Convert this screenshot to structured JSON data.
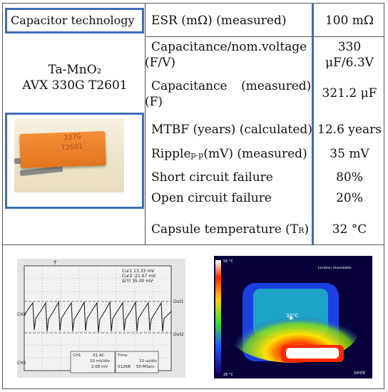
{
  "table": {
    "header_left": "Capacitor technology",
    "capacitor_type": "Ta-MnO₂",
    "capacitor_model": "AVX 330G T2601",
    "photo_marking_1": "337G",
    "photo_marking_2": "T2601",
    "rows": [
      {
        "label": "ESR (mΩ) (measured)",
        "value": "100 mΩ"
      },
      {
        "label_line1": "Capacitance/nom.voltage",
        "label_line2": "(F/V)",
        "value_line1": "330",
        "value_line2": "μF/6.3V"
      },
      {
        "label_line1_a": "Capacitance",
        "label_line1_b": "(measured)",
        "label_line2": "(F)",
        "value": "321.2 μF"
      },
      {
        "label": "MTBF (years) (calculated)",
        "value": "12.6 years"
      },
      {
        "label_a": "Ripple",
        "label_sub": "p-p",
        "label_b": "(mV) (measured)",
        "value": "35 mV"
      },
      {
        "label": "Short circuit failure",
        "value": "80%"
      },
      {
        "label": "Open circuit failure",
        "value": "20%"
      },
      {
        "label_a": "Capsule temperature (T",
        "label_sub": "R",
        "label_b": ")",
        "value": "32 °C"
      }
    ]
  },
  "oscilloscope": {
    "ch1_label": "CH1",
    "ch2_label": "CH2",
    "cursor1": "Cur1  13.33 mV",
    "cursor2": "Cur2  -21.67 mV",
    "delta": "Δ(Y)  35.00 mV",
    "out1": "Out1",
    "out2": "Out2",
    "info_ch": "CH1",
    "info_coupling": "X1  AC",
    "info_scale": "10 mV/div",
    "info_val": "2.08 mV",
    "info_time_label": "Time",
    "info_time": "10 us/div",
    "info_mem": "512KB",
    "info_rate": "50 MSa/s",
    "trigger_label": "T"
  },
  "thermal": {
    "top_scale": "56 °C",
    "bottom_scale": "28 °C",
    "spot_label": "32°C",
    "header_text": "Location Unavailable",
    "brand": "seek"
  }
}
